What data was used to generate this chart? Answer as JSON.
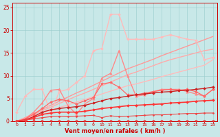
{
  "bg_color": "#c8e8e8",
  "xlabel": "Vent moyen/en rafales ( km/h )",
  "xlabel_color": "#cc0000",
  "tick_color": "#cc0000",
  "xlim": [
    -0.5,
    23.5
  ],
  "ylim": [
    0,
    26
  ],
  "yticks": [
    0,
    5,
    10,
    15,
    20,
    25
  ],
  "xticks": [
    0,
    1,
    2,
    3,
    4,
    5,
    6,
    7,
    8,
    9,
    10,
    11,
    12,
    13,
    14,
    15,
    16,
    17,
    18,
    19,
    20,
    21,
    22,
    23
  ],
  "lines": [
    {
      "x": [
        0,
        1,
        2,
        3,
        4,
        5,
        6,
        7,
        8,
        9,
        10,
        11,
        12,
        13,
        14,
        15,
        16,
        17,
        18,
        19,
        20,
        21,
        22,
        23
      ],
      "y": [
        0,
        0,
        0,
        0,
        0,
        0,
        0,
        0,
        0,
        0,
        0,
        0,
        0,
        0,
        0,
        0,
        0,
        0,
        0,
        0,
        0,
        0,
        0,
        0
      ],
      "color": "#ee3333",
      "lw": 0.7,
      "marker": "v",
      "ms": 2.5,
      "zorder": 5
    },
    {
      "x": [
        0,
        1,
        2,
        3,
        4,
        5,
        6,
        7,
        8,
        9,
        10,
        11,
        12,
        13,
        14,
        15,
        16,
        17,
        18,
        19,
        20,
        21,
        22,
        23
      ],
      "y": [
        0.1,
        0.3,
        0.5,
        0.8,
        1.0,
        1.1,
        1.0,
        1.1,
        1.2,
        1.3,
        0.8,
        1.2,
        1.0,
        1.1,
        1.2,
        1.3,
        1.4,
        1.4,
        1.5,
        1.6,
        1.7,
        1.7,
        1.8,
        1.8
      ],
      "color": "#ee4444",
      "lw": 0.8,
      "marker": "D",
      "ms": 1.5,
      "zorder": 5
    },
    {
      "x": [
        0,
        1,
        2,
        3,
        4,
        5,
        6,
        7,
        8,
        9,
        10,
        11,
        12,
        13,
        14,
        15,
        16,
        17,
        18,
        19,
        20,
        21,
        22,
        23
      ],
      "y": [
        0.0,
        0.6,
        1.2,
        1.8,
        2.4,
        3.0,
        3.6,
        4.2,
        4.8,
        5.4,
        6.0,
        6.6,
        7.2,
        7.8,
        8.2,
        8.7,
        9.2,
        9.8,
        10.3,
        10.8,
        11.3,
        11.8,
        12.3,
        13.5
      ],
      "color": "#ffbbbb",
      "lw": 1.0,
      "marker": null,
      "ms": 0,
      "zorder": 2
    },
    {
      "x": [
        0,
        1,
        2,
        3,
        4,
        5,
        6,
        7,
        8,
        9,
        10,
        11,
        12,
        13,
        14,
        15,
        16,
        17,
        18,
        19,
        20,
        21,
        22,
        23
      ],
      "y": [
        0.0,
        0.8,
        1.7,
        2.6,
        3.5,
        4.4,
        5.3,
        6.2,
        7.0,
        7.9,
        8.8,
        9.7,
        10.6,
        11.5,
        12.2,
        12.9,
        13.6,
        14.4,
        15.1,
        15.8,
        16.5,
        17.2,
        17.9,
        18.6
      ],
      "color": "#ff9999",
      "lw": 1.0,
      "marker": null,
      "ms": 0,
      "zorder": 2
    },
    {
      "x": [
        0,
        1,
        2,
        3,
        4,
        5,
        6,
        7,
        8,
        9,
        10,
        11,
        12,
        13,
        14,
        15,
        16,
        17,
        18,
        19,
        20,
        21,
        22,
        23
      ],
      "y": [
        0.0,
        0.7,
        1.5,
        2.3,
        3.1,
        3.9,
        4.7,
        5.5,
        6.2,
        7.0,
        7.8,
        8.6,
        9.4,
        10.2,
        10.8,
        11.5,
        12.2,
        12.9,
        13.5,
        14.0,
        14.5,
        15.0,
        15.5,
        15.8
      ],
      "color": "#ffaaaa",
      "lw": 1.0,
      "marker": null,
      "ms": 0,
      "zorder": 2
    },
    {
      "x": [
        0,
        1,
        2,
        3,
        4,
        5,
        6,
        7,
        8,
        9,
        10,
        11,
        12,
        13,
        14,
        15,
        16,
        17,
        18,
        19,
        20,
        21,
        22,
        23
      ],
      "y": [
        0.0,
        0.5,
        1.5,
        2.8,
        4.2,
        4.8,
        4.5,
        3.8,
        4.5,
        5.2,
        8.2,
        8.5,
        7.5,
        5.8,
        5.8,
        6.2,
        6.5,
        6.8,
        7.0,
        6.8,
        7.0,
        6.5,
        5.5,
        7.0
      ],
      "color": "#ff6666",
      "lw": 0.9,
      "marker": "D",
      "ms": 2.0,
      "zorder": 4
    },
    {
      "x": [
        0,
        1,
        2,
        3,
        4,
        5,
        6,
        7,
        8,
        9,
        10,
        11,
        12,
        13,
        14,
        15,
        16,
        17,
        18,
        19,
        20,
        21,
        22,
        23
      ],
      "y": [
        0.0,
        0.3,
        1.0,
        2.0,
        2.5,
        2.8,
        3.0,
        3.2,
        3.5,
        4.0,
        4.5,
        5.0,
        5.2,
        5.5,
        5.8,
        6.0,
        6.2,
        6.4,
        6.5,
        6.7,
        6.8,
        7.0,
        7.2,
        7.5
      ],
      "color": "#cc2222",
      "lw": 1.0,
      "marker": "D",
      "ms": 2.0,
      "zorder": 4
    },
    {
      "x": [
        0,
        1,
        2,
        3,
        4,
        5,
        6,
        7,
        8,
        9,
        10,
        11,
        12,
        13,
        14,
        15,
        16,
        17,
        18,
        19,
        20,
        21,
        22,
        23
      ],
      "y": [
        0.0,
        0.2,
        0.8,
        1.5,
        1.8,
        2.0,
        2.0,
        2.0,
        2.2,
        2.5,
        2.8,
        3.0,
        3.2,
        3.4,
        3.5,
        3.6,
        3.7,
        3.8,
        4.0,
        4.1,
        4.2,
        4.4,
        4.5,
        4.6
      ],
      "color": "#ff3333",
      "lw": 1.2,
      "marker": "D",
      "ms": 2.0,
      "zorder": 4
    },
    {
      "x": [
        0,
        1,
        2,
        3,
        4,
        5,
        6,
        7,
        8,
        9,
        10,
        11,
        12,
        13,
        14,
        15,
        16,
        17,
        18,
        19,
        20,
        21,
        22,
        23
      ],
      "y": [
        2.0,
        5.5,
        7.0,
        7.0,
        1.8,
        6.5,
        7.0,
        8.5,
        10.0,
        15.5,
        16.0,
        23.5,
        23.5,
        18.0,
        18.0,
        18.0,
        18.0,
        18.5,
        19.0,
        18.5,
        18.0,
        17.8,
        13.5,
        14.0
      ],
      "color": "#ffbbbb",
      "lw": 1.0,
      "marker": "D",
      "ms": 2.0,
      "zorder": 3
    },
    {
      "x": [
        0,
        1,
        2,
        3,
        4,
        5,
        6,
        7,
        8,
        9,
        10,
        11,
        12,
        13,
        14,
        15,
        16,
        17,
        18,
        19,
        20,
        21,
        22,
        23
      ],
      "y": [
        0.0,
        0.5,
        2.0,
        4.0,
        6.8,
        7.0,
        3.5,
        1.5,
        3.8,
        5.0,
        9.5,
        10.5,
        15.5,
        10.0,
        5.5,
        5.8,
        6.5,
        7.0,
        7.0,
        7.0,
        6.5,
        6.0,
        5.5,
        7.0
      ],
      "color": "#ff8888",
      "lw": 1.0,
      "marker": "^",
      "ms": 2.5,
      "zorder": 3
    }
  ]
}
